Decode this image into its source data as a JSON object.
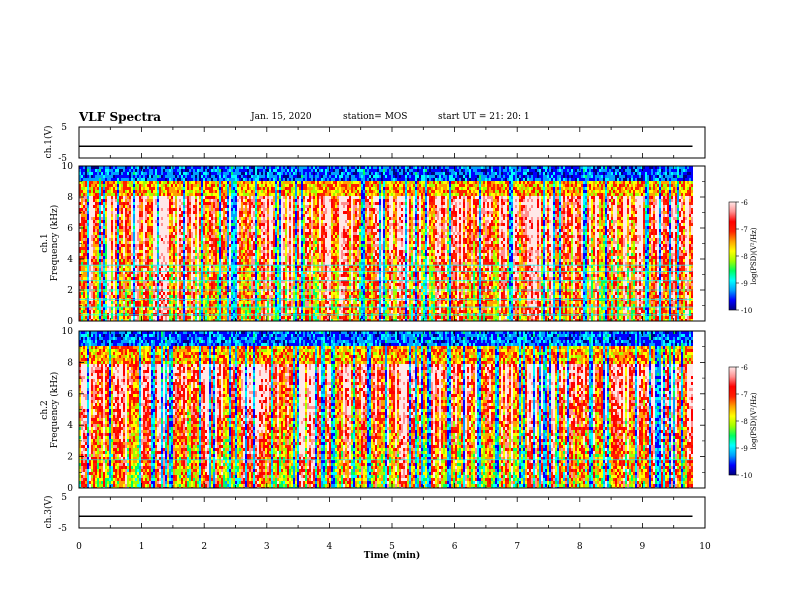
{
  "header": {
    "title": "VLF Spectra",
    "date": "Jan. 15, 2020",
    "station": "station= MOS",
    "start": "start UT = 21: 20: 1"
  },
  "colorbar": {
    "label": "log(PSD)(V²/Hz)",
    "ticks": [
      "-6",
      "-7",
      "-8",
      "-9",
      "-10"
    ],
    "colors": [
      "#000080",
      "#0000ff",
      "#00a0ff",
      "#00ffff",
      "#00ff60",
      "#a0ff00",
      "#ffff00",
      "#ffa000",
      "#ff2000",
      "#ff0000",
      "#ff9090",
      "#ffe8e8"
    ]
  },
  "chart_data": [
    {
      "type": "line",
      "panel": "ch1-waveform",
      "ylabel": "ch.1(V)",
      "ylim": [
        -5,
        5
      ],
      "ytick_labels": [
        "5",
        "-5"
      ],
      "x": [
        0,
        9.8
      ],
      "series": [
        {
          "values": [
            -1.2,
            -1.2
          ]
        }
      ]
    },
    {
      "type": "heatmap",
      "panel": "ch1-spectrogram",
      "ylabel": "ch.1 Frequency (kHz)",
      "ylim": [
        0,
        10
      ],
      "ytick_labels": [
        "0",
        "2",
        "4",
        "6",
        "8",
        "10"
      ],
      "xlim": [
        0,
        10
      ],
      "data_extent_min": 9.8,
      "clim": [
        -10,
        -6
      ],
      "color_unit": "log(PSD)(V²/Hz)"
    },
    {
      "type": "heatmap",
      "panel": "ch2-spectrogram",
      "ylabel": "ch.2 Frequency (kHz)",
      "ylim": [
        0,
        10
      ],
      "ytick_labels": [
        "0",
        "2",
        "4",
        "6",
        "8",
        "10"
      ],
      "xlim": [
        0,
        10
      ],
      "data_extent_min": 9.8,
      "clim": [
        -10,
        -6
      ],
      "color_unit": "log(PSD)(V²/Hz)"
    },
    {
      "type": "line",
      "panel": "ch3-waveform",
      "ylabel": "ch.3(V)",
      "ylim": [
        -5,
        5
      ],
      "ytick_labels": [
        "5",
        "-5"
      ],
      "x": [
        0,
        9.8
      ],
      "series": [
        {
          "values": [
            -1.2,
            -1.2
          ]
        }
      ]
    }
  ],
  "xaxis": {
    "label": "Time (min)",
    "ticks": [
      "0",
      "1",
      "2",
      "3",
      "4",
      "5",
      "6",
      "7",
      "8",
      "9",
      "10"
    ]
  },
  "labels": {
    "ch1_wave": "ch.1(V)",
    "ch1_freq": "ch.1",
    "freq": "Frequency (kHz)",
    "ch2_freq": "ch.2",
    "ch3_wave": "ch.3(V)"
  }
}
